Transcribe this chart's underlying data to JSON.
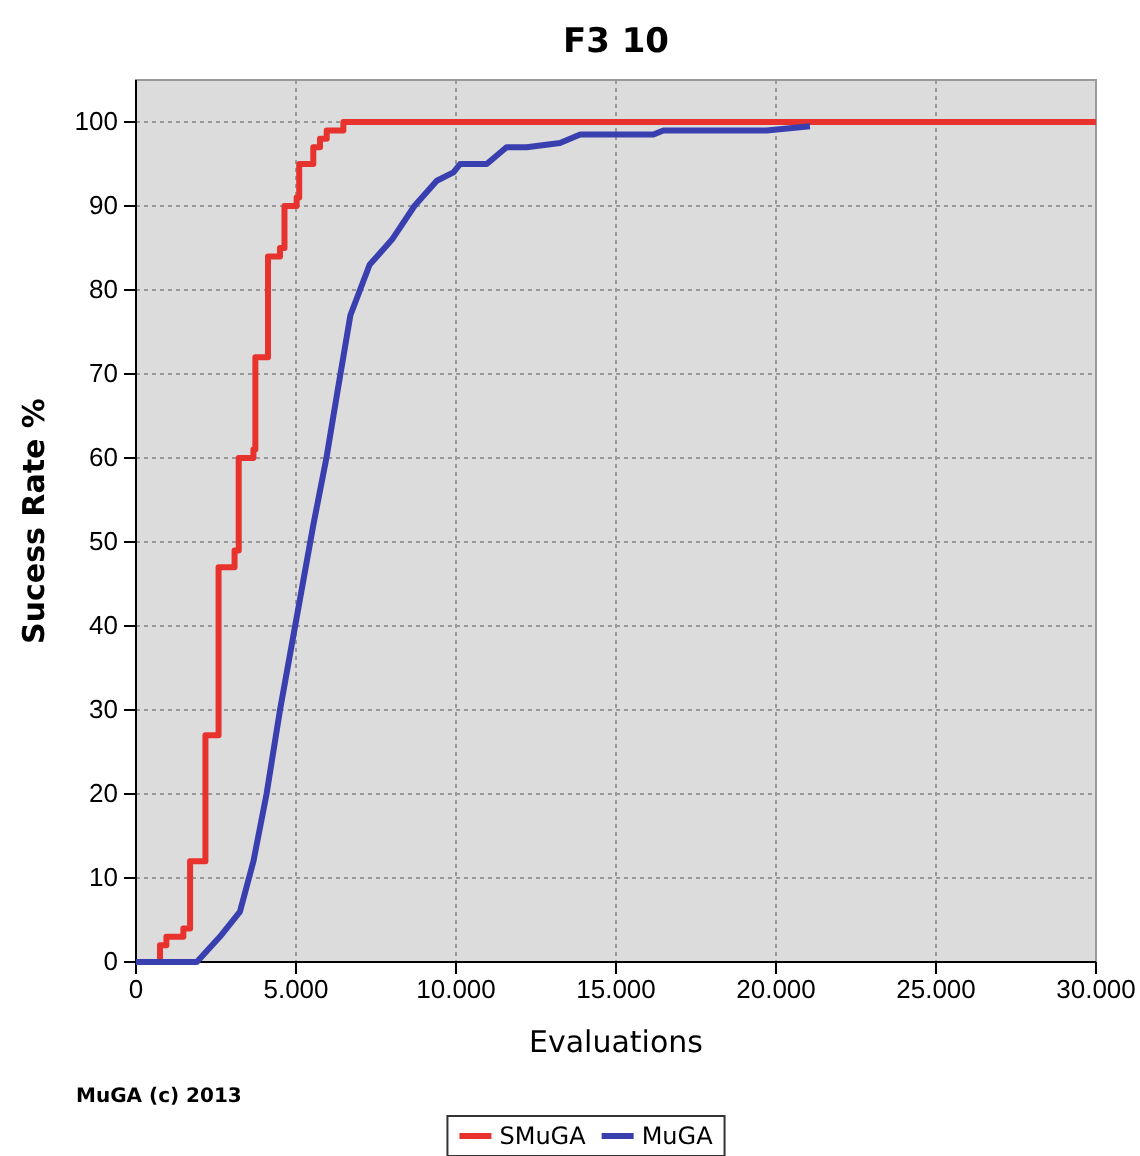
{
  "chart_data": {
    "type": "line",
    "title": "F3 10",
    "xlabel": "Evaluations",
    "ylabel": "Sucess Rate %",
    "xlim": [
      0,
      30000
    ],
    "xticks": [
      {
        "value": 0,
        "label": "0"
      },
      {
        "value": 5000,
        "label": "5.000"
      },
      {
        "value": 10000,
        "label": "10.000"
      },
      {
        "value": 15000,
        "label": "15.000"
      },
      {
        "value": 20000,
        "label": "20.000"
      },
      {
        "value": 25000,
        "label": "25.000"
      },
      {
        "value": 30000,
        "label": "30.000"
      }
    ],
    "ylim": [
      0,
      105
    ],
    "yticks": [
      0,
      10,
      20,
      30,
      40,
      50,
      60,
      70,
      80,
      90,
      100
    ],
    "grid": true,
    "legend": "bottom",
    "marker": "none",
    "line_style": "solid",
    "annotations": [
      "MuGA (c) 2013"
    ],
    "series": [
      {
        "name": "SMuGA",
        "type": "step",
        "color": "#e8322e",
        "x": [
          0,
          750,
          950,
          1480,
          1690,
          2170,
          2580,
          3080,
          3210,
          3670,
          3730,
          4125,
          4500,
          4640,
          5020,
          5100,
          5540,
          5750,
          5960,
          6480,
          30000
        ],
        "values": [
          0,
          2,
          3,
          4,
          12,
          27,
          47,
          49,
          60,
          61,
          72,
          84,
          85,
          90,
          91,
          95,
          97,
          98,
          99,
          100,
          100
        ]
      },
      {
        "name": "MuGA",
        "color": "#3a3fb0",
        "x": [
          0,
          1900,
          2620,
          3250,
          3670,
          4080,
          4500,
          5020,
          5540,
          5950,
          6300,
          6700,
          7300,
          8000,
          8700,
          9400,
          9920,
          10130,
          10960,
          11580,
          12210,
          13250,
          13880,
          16170,
          16480,
          19710,
          21060
        ],
        "values": [
          0,
          0,
          3,
          6,
          12,
          20,
          30,
          41,
          52,
          60,
          68,
          77,
          83,
          86,
          90,
          93,
          94,
          95,
          95,
          97,
          97,
          97.5,
          98.5,
          98.5,
          99,
          99,
          99.5
        ]
      }
    ]
  }
}
